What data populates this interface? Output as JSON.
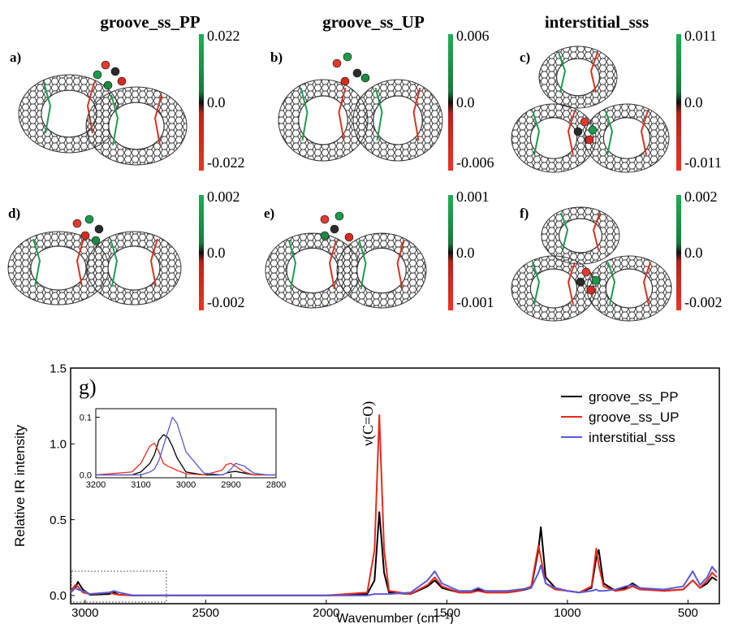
{
  "columns": [
    "groove_ss_PP",
    "groove_ss_UP",
    "interstitial_sss"
  ],
  "panels": [
    {
      "label": "a)",
      "scale": [
        "0.022",
        "0.0",
        "-0.022"
      ]
    },
    {
      "label": "b)",
      "scale": [
        "0.006",
        "0.0",
        "-0.006"
      ]
    },
    {
      "label": "c)",
      "scale": [
        "0.011",
        "0.0",
        "-0.011"
      ]
    },
    {
      "label": "d)",
      "scale": [
        "0.002",
        "0.0",
        "-0.002"
      ]
    },
    {
      "label": "e)",
      "scale": [
        "0.001",
        "0.0",
        "-0.001"
      ]
    },
    {
      "label": "f)",
      "scale": [
        "0.002",
        "0.0",
        "-0.002"
      ]
    }
  ],
  "chart_data": [
    {
      "type": "line",
      "panel_label": "g)",
      "annotation": "ν(C=O)",
      "x_label": "Wavenumber (cm⁻¹)",
      "y_label": "Relative IR intensity",
      "x": [
        3060,
        3040,
        3030,
        3010,
        2980,
        2900,
        2880,
        2860,
        2800,
        2000,
        1830,
        1800,
        1780,
        1760,
        1740,
        1650,
        1580,
        1550,
        1520,
        1450,
        1400,
        1370,
        1340,
        1250,
        1200,
        1150,
        1120,
        1110,
        1090,
        1050,
        1000,
        950,
        900,
        880,
        870,
        850,
        800,
        760,
        730,
        700,
        600,
        520,
        480,
        450,
        420,
        400,
        380
      ],
      "series": [
        {
          "name": "groove_ss_PP",
          "color": "#000000",
          "values": [
            0.02,
            0.05,
            0.09,
            0.04,
            0.005,
            0.01,
            0.02,
            0.005,
            0,
            0,
            0.01,
            0.1,
            0.55,
            0.15,
            0.02,
            0.01,
            0.06,
            0.1,
            0.05,
            0.02,
            0.02,
            0.04,
            0.02,
            0.02,
            0.03,
            0.05,
            0.3,
            0.45,
            0.12,
            0.05,
            0.03,
            0.02,
            0.05,
            0.25,
            0.3,
            0.08,
            0.03,
            0.05,
            0.08,
            0.05,
            0.03,
            0.04,
            0.1,
            0.05,
            0.08,
            0.12,
            0.1
          ]
        },
        {
          "name": "groove_ss_UP",
          "color": "#e8291c",
          "values": [
            0.03,
            0.07,
            0.06,
            0.02,
            0.01,
            0.02,
            0.01,
            0.005,
            0,
            0,
            0.02,
            0.3,
            1.19,
            0.3,
            0.03,
            0.01,
            0.07,
            0.12,
            0.06,
            0.02,
            0.02,
            0.03,
            0.02,
            0.02,
            0.03,
            0.06,
            0.33,
            0.25,
            0.08,
            0.04,
            0.03,
            0.02,
            0.06,
            0.31,
            0.2,
            0.06,
            0.03,
            0.04,
            0.06,
            0.04,
            0.03,
            0.04,
            0.1,
            0.05,
            0.1,
            0.15,
            0.12
          ]
        },
        {
          "name": "interstitial_sss",
          "color": "#5b5bd6",
          "values": [
            0.02,
            0.05,
            0.04,
            0.03,
            0.01,
            0.02,
            0.03,
            0.02,
            0,
            0,
            0,
            0.01,
            0.01,
            0.01,
            0.01,
            0.02,
            0.1,
            0.16,
            0.08,
            0.03,
            0.03,
            0.05,
            0.03,
            0.03,
            0.04,
            0.05,
            0.15,
            0.2,
            0.08,
            0.05,
            0.03,
            0.02,
            0.03,
            0.04,
            0.03,
            0.03,
            0.04,
            0.06,
            0.07,
            0.05,
            0.04,
            0.06,
            0.16,
            0.07,
            0.12,
            0.19,
            0.15
          ]
        }
      ],
      "xlim": [
        3060,
        370
      ],
      "ylim": [
        -0.054,
        1.5
      ],
      "xticks": [
        3000,
        2500,
        2000,
        1500,
        1000,
        500
      ],
      "yticks": [
        {
          "value": 0,
          "label": "0.0"
        },
        {
          "value": 0.5,
          "label": "0.5"
        },
        {
          "value": 1,
          "label": "1.0"
        },
        1.5
      ],
      "legend": "upper right"
    },
    {
      "type": "line",
      "x": [
        3200,
        3120,
        3100,
        3080,
        3070,
        3060,
        3050,
        3040,
        3030,
        3020,
        3000,
        2960,
        2920,
        2910,
        2900,
        2890,
        2870,
        2850,
        2820,
        2800
      ],
      "series": [
        {
          "color": "#000000",
          "values": [
            0,
            0,
            0.005,
            0.02,
            0.035,
            0.06,
            0.07,
            0.065,
            0.05,
            0.03,
            0.005,
            0,
            0,
            0.003,
            0.005,
            0.006,
            0.003,
            0,
            0,
            0
          ]
        },
        {
          "color": "#e8291c",
          "values": [
            0,
            0.005,
            0.02,
            0.05,
            0.055,
            0.04,
            0.02,
            0.015,
            0.012,
            0.008,
            0.002,
            0,
            0.008,
            0.018,
            0.02,
            0.015,
            0.005,
            0,
            0,
            0
          ]
        },
        {
          "color": "#5b5bd6",
          "values": [
            0,
            0,
            0,
            0.005,
            0.01,
            0.025,
            0.05,
            0.075,
            0.1,
            0.09,
            0.04,
            0.003,
            0,
            0.003,
            0.01,
            0.02,
            0.015,
            0.003,
            0,
            0
          ]
        }
      ],
      "xlim": [
        3200,
        2800
      ],
      "ylim": [
        -0.005,
        0.115
      ],
      "xticks": [
        3200,
        3100,
        3000,
        2900,
        2800
      ],
      "yticks": [
        {
          "value": 0,
          "label": "0.0"
        },
        {
          "value": 0.1,
          "label": "0.1"
        }
      ]
    }
  ]
}
